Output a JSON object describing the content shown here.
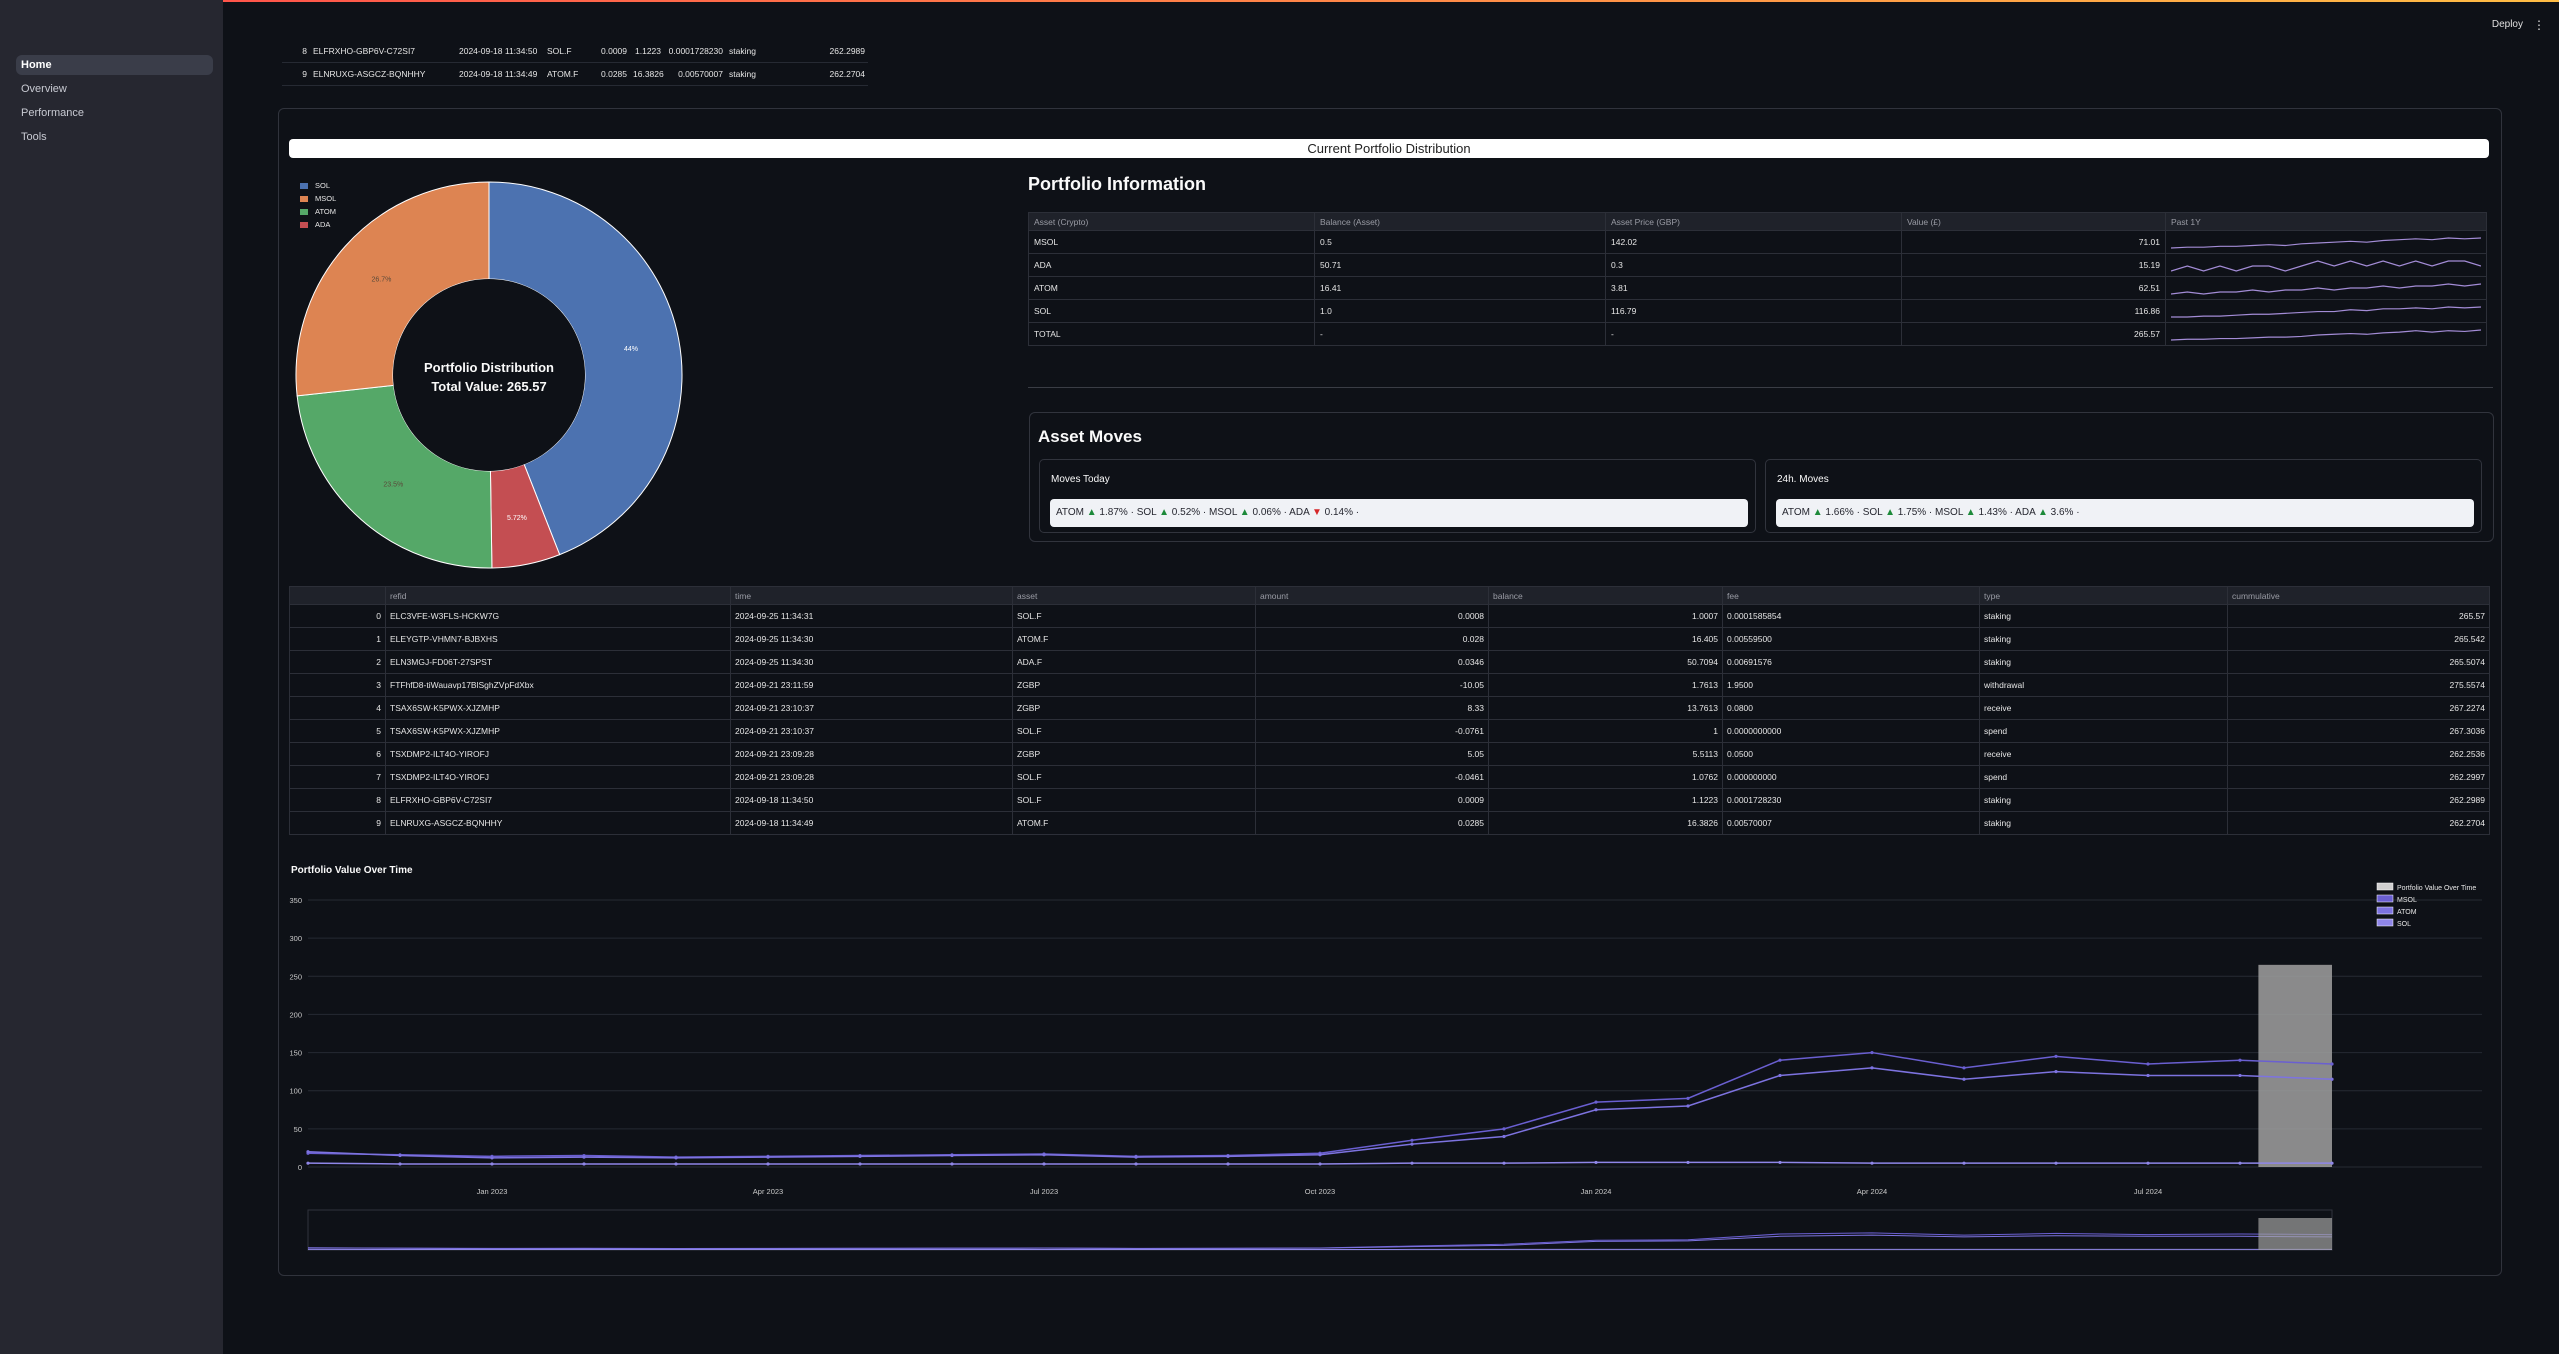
{
  "app": {
    "deploy_label": "Deploy",
    "menu_icon": "more-vert-icon",
    "accent": "#ff4b4b"
  },
  "sidebar": {
    "items": [
      {
        "label": "Home",
        "active": true
      },
      {
        "label": "Overview"
      },
      {
        "label": "Performance"
      },
      {
        "label": "Tools"
      }
    ]
  },
  "top_table": {
    "rows": [
      [
        "8",
        "ELFRXHO-GBP6V-C72SI7",
        "2024-09-18 11:34:50",
        "SOL.F",
        "0.0009",
        "1.1223",
        "0.0001728230",
        "staking",
        "262.2989"
      ],
      [
        "9",
        "ELNRUXG-ASGCZ-BQNHHY",
        "2024-09-18 11:34:49",
        "ATOM.F",
        "0.0285",
        "16.3826",
        "0.00570007",
        "staking",
        "262.2704"
      ]
    ]
  },
  "distribution": {
    "header": "Current Portfolio Distribution",
    "center_title": "Portfolio Distribution",
    "center_total": "Total Value: 265.57",
    "legend": [
      {
        "label": "SOL",
        "color": "#4c72b0"
      },
      {
        "label": "MSOL",
        "color": "#dd8452"
      },
      {
        "label": "ATOM",
        "color": "#55a868"
      },
      {
        "label": "ADA",
        "color": "#c44e52"
      }
    ],
    "slice_labels": [
      "44%",
      "26.7%",
      "23.5%",
      "5.72%"
    ]
  },
  "chart_data": [
    {
      "type": "pie",
      "title": "Portfolio Distribution",
      "categories": [
        "SOL",
        "ADA",
        "ATOM",
        "MSOL"
      ],
      "values": [
        44,
        5.72,
        23.5,
        26.7
      ],
      "colors": [
        "#4c72b0",
        "#c44e52",
        "#55a868",
        "#dd8452"
      ],
      "hole": 0.5
    },
    {
      "type": "line",
      "title": "Portfolio Value Over Time",
      "x": [
        "2022-11",
        "2022-12",
        "2023-01",
        "2023-02",
        "2023-03",
        "2023-04",
        "2023-05",
        "2023-06",
        "2023-07",
        "2023-08",
        "2023-09",
        "2023-10",
        "2023-11",
        "2023-12",
        "2024-01",
        "2024-02",
        "2024-03",
        "2024-04",
        "2024-05",
        "2024-06",
        "2024-07",
        "2024-08",
        "2024-09"
      ],
      "ylim": [
        0,
        350
      ],
      "yticks": [
        0,
        50,
        100,
        150,
        200,
        250,
        300,
        350
      ],
      "xticks": [
        "Jan 2023",
        "Apr 2023",
        "Jul 2023",
        "Oct 2023",
        "Jan 2024",
        "Apr 2024",
        "Jul 2024"
      ],
      "series": [
        {
          "name": "Portfolio Value Over Time",
          "color": "#d0d0d0",
          "values": [
            null,
            null,
            null,
            null,
            null,
            null,
            null,
            null,
            null,
            null,
            null,
            null,
            null,
            null,
            null,
            null,
            null,
            null,
            null,
            null,
            null,
            null,
            265
          ]
        },
        {
          "name": "MSOL",
          "color": "#6a5fd1",
          "values": [
            18,
            16,
            14,
            15,
            13,
            14,
            15,
            16,
            17,
            14,
            15,
            18,
            35,
            50,
            85,
            90,
            140,
            150,
            130,
            145,
            135,
            140,
            135
          ]
        },
        {
          "name": "ATOM",
          "color": "#7d73e0",
          "values": [
            20,
            15,
            12,
            13,
            12,
            13,
            14,
            15,
            16,
            13,
            14,
            16,
            30,
            40,
            75,
            80,
            120,
            130,
            115,
            125,
            120,
            120,
            115
          ]
        },
        {
          "name": "SOL",
          "color": "#8f86e8",
          "values": [
            5,
            4,
            4,
            4,
            4,
            4,
            4,
            4,
            4,
            4,
            4,
            4,
            5,
            5,
            6,
            6,
            6,
            5,
            5,
            5,
            5,
            5,
            5
          ]
        }
      ],
      "legend_position": "top-right"
    }
  ],
  "portfolio_info": {
    "title": "Portfolio Information",
    "columns": [
      "Asset (Crypto)",
      "Balance (Asset)",
      "Asset Price (GBP)",
      "Value (£)",
      "Past 1Y"
    ],
    "rows": [
      {
        "asset": "MSOL",
        "balance": "0.5",
        "price": "142.02",
        "value": "71.01",
        "trend": [
          3,
          4,
          4,
          5,
          5,
          6,
          7,
          6,
          8,
          9,
          10,
          11,
          10,
          12,
          13,
          14,
          13,
          15,
          14,
          15
        ]
      },
      {
        "asset": "ADA",
        "balance": "50.71",
        "price": "0.3",
        "value": "15.19",
        "trend": [
          2,
          3,
          2,
          3,
          2,
          3,
          3,
          2,
          3,
          4,
          3,
          4,
          3,
          4,
          3,
          4,
          3,
          4,
          4,
          3
        ]
      },
      {
        "asset": "ATOM",
        "balance": "16.41",
        "price": "3.81",
        "value": "62.51",
        "trend": [
          4,
          5,
          4,
          5,
          5,
          6,
          5,
          6,
          6,
          7,
          6,
          7,
          7,
          8,
          7,
          8,
          8,
          9,
          8,
          9
        ]
      },
      {
        "asset": "SOL",
        "balance": "1.0",
        "price": "116.79",
        "value": "116.86",
        "trend": [
          3,
          3,
          4,
          4,
          5,
          6,
          6,
          7,
          8,
          9,
          9,
          11,
          10,
          12,
          12,
          13,
          12,
          14,
          13,
          14
        ]
      },
      {
        "asset": "TOTAL",
        "balance": "-",
        "price": "-",
        "value": "265.57",
        "trend": [
          3,
          4,
          4,
          5,
          5,
          6,
          7,
          7,
          8,
          10,
          11,
          12,
          11,
          13,
          14,
          16,
          14,
          16,
          15,
          17
        ]
      }
    ]
  },
  "asset_moves": {
    "title": "Asset Moves",
    "today_label": "Moves Today",
    "h24_label": "24h. Moves",
    "today": [
      {
        "sym": "ATOM",
        "dir": "up",
        "pct": "1.87%"
      },
      {
        "sym": "SOL",
        "dir": "up",
        "pct": "0.52%"
      },
      {
        "sym": "MSOL",
        "dir": "up",
        "pct": "0.06%"
      },
      {
        "sym": "ADA",
        "dir": "down",
        "pct": "0.14%"
      }
    ],
    "h24": [
      {
        "sym": "ATOM",
        "dir": "up",
        "pct": "1.66%"
      },
      {
        "sym": "SOL",
        "dir": "up",
        "pct": "1.75%"
      },
      {
        "sym": "MSOL",
        "dir": "up",
        "pct": "1.43%"
      },
      {
        "sym": "ADA",
        "dir": "up",
        "pct": "3.6%"
      }
    ]
  },
  "transactions": {
    "columns": [
      "",
      "refid",
      "time",
      "asset",
      "amount",
      "balance",
      "fee",
      "type",
      "cummulative"
    ],
    "rows": [
      [
        "0",
        "ELC3VFE-W3FLS-HCKW7G",
        "2024-09-25 11:34:31",
        "SOL.F",
        "0.0008",
        "1.0007",
        "0.0001585854",
        "staking",
        "265.57"
      ],
      [
        "1",
        "ELEYGTP-VHMN7-BJBXHS",
        "2024-09-25 11:34:30",
        "ATOM.F",
        "0.028",
        "16.405",
        "0.00559500",
        "staking",
        "265.542"
      ],
      [
        "2",
        "ELN3MGJ-FD06T-27SPST",
        "2024-09-25 11:34:30",
        "ADA.F",
        "0.0346",
        "50.7094",
        "0.00691576",
        "staking",
        "265.5074"
      ],
      [
        "3",
        "FTFhfD8-tiWauavp17BlSghZVpFdXbx",
        "2024-09-21 23:11:59",
        "ZGBP",
        "-10.05",
        "1.7613",
        "1.9500",
        "withdrawal",
        "275.5574"
      ],
      [
        "4",
        "TSAX6SW-K5PWX-XJZMHP",
        "2024-09-21 23:10:37",
        "ZGBP",
        "8.33",
        "13.7613",
        "0.0800",
        "receive",
        "267.2274"
      ],
      [
        "5",
        "TSAX6SW-K5PWX-XJZMHP",
        "2024-09-21 23:10:37",
        "SOL.F",
        "-0.0761",
        "1",
        "0.0000000000",
        "spend",
        "267.3036"
      ],
      [
        "6",
        "TSXDMP2-ILT4O-YIROFJ",
        "2024-09-21 23:09:28",
        "ZGBP",
        "5.05",
        "5.5113",
        "0.0500",
        "receive",
        "262.2536"
      ],
      [
        "7",
        "TSXDMP2-ILT4O-YIROFJ",
        "2024-09-21 23:09:28",
        "SOL.F",
        "-0.0461",
        "1.0762",
        "0.000000000",
        "spend",
        "262.2997"
      ],
      [
        "8",
        "ELFRXHO-GBP6V-C72SI7",
        "2024-09-18 11:34:50",
        "SOL.F",
        "0.0009",
        "1.1223",
        "0.0001728230",
        "staking",
        "262.2989"
      ],
      [
        "9",
        "ELNRUXG-ASGCZ-BQNHHY",
        "2024-09-18 11:34:49",
        "ATOM.F",
        "0.0285",
        "16.3826",
        "0.00570007",
        "staking",
        "262.2704"
      ]
    ]
  }
}
